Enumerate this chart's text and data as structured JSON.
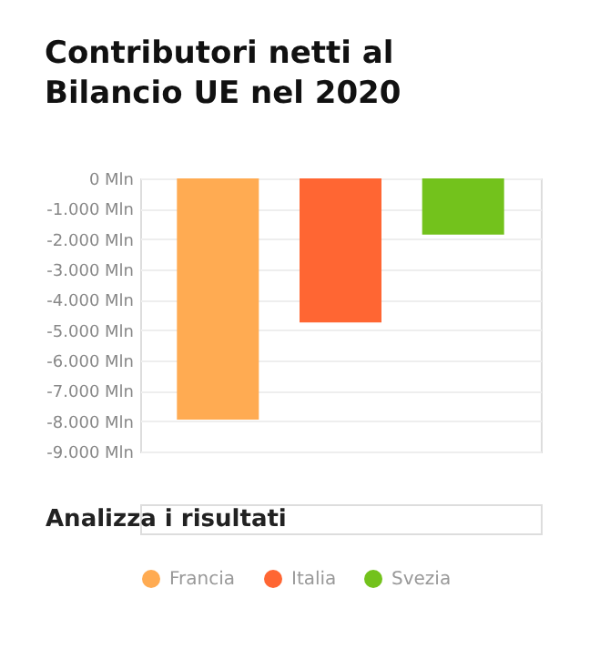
{
  "chart_data": {
    "type": "bar",
    "title": "Contributori netti al Bilancio UE nel 2020",
    "categories": [
      null
    ],
    "series": [
      {
        "name": "Francia",
        "color": "#ffab52",
        "values": [
          -7950
        ]
      },
      {
        "name": "Italia",
        "color": "#ff6633",
        "values": [
          -4750
        ]
      },
      {
        "name": "Svezia",
        "color": "#73c21c",
        "values": [
          -1850
        ]
      }
    ],
    "ylim": [
      -9000,
      0
    ],
    "yticks": [
      {
        "value": 0,
        "label": "0 Mln"
      },
      {
        "value": -1000,
        "label": "-1.000 Mln"
      },
      {
        "value": -2000,
        "label": "-2.000 Mln"
      },
      {
        "value": -3000,
        "label": "-3.000 Mln"
      },
      {
        "value": -4000,
        "label": "-4.000 Mln"
      },
      {
        "value": -5000,
        "label": "-5.000 Mln"
      },
      {
        "value": -6000,
        "label": "-6.000 Mln"
      },
      {
        "value": -7000,
        "label": "-7.000 Mln"
      },
      {
        "value": -8000,
        "label": "-8.000 Mln"
      },
      {
        "value": -9000,
        "label": "-9.000 Mln"
      }
    ],
    "grid": "y",
    "legend": "bottom",
    "annotations": [
      "Analizza i risultati"
    ]
  }
}
